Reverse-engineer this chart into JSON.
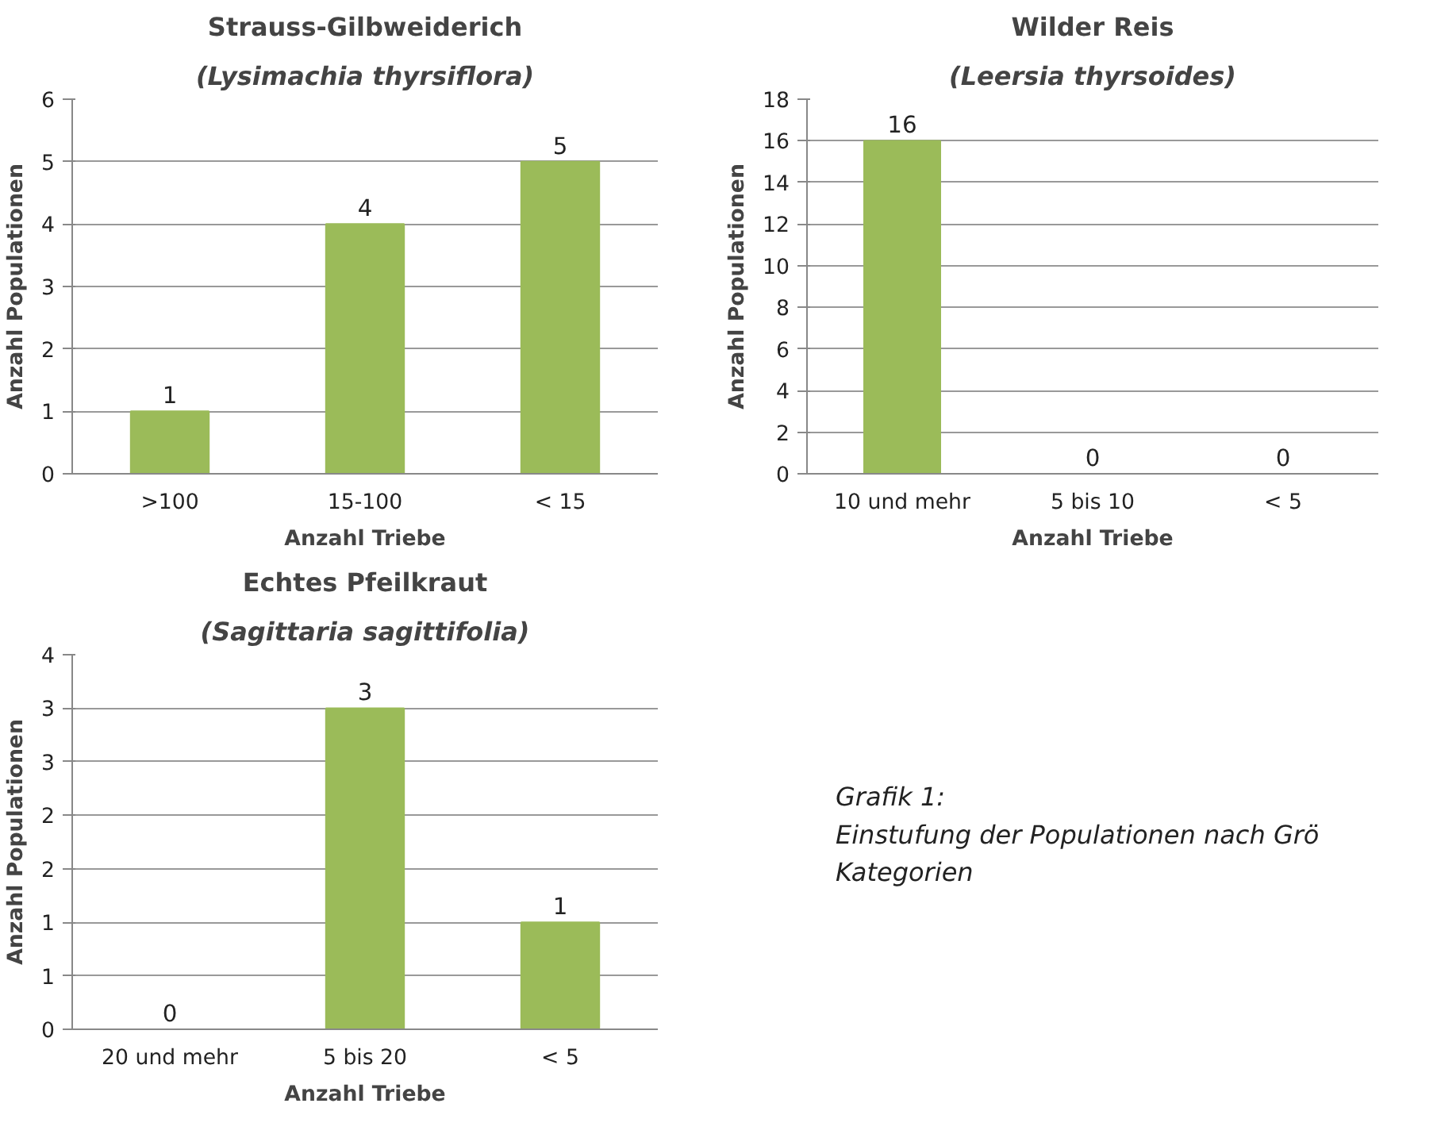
{
  "chart_data": [
    {
      "type": "bar",
      "title": "Strauss-Gilbweiderich",
      "subtitle": "(Lysimachia thyrsiflora)",
      "xlabel": "Anzahl Triebe",
      "ylabel": "Anzahl Populationen",
      "categories": [
        ">100",
        "15-100",
        "< 15"
      ],
      "values": [
        1,
        4,
        5
      ],
      "color": "#9bbb59",
      "ylim": [
        0,
        6
      ],
      "yticks": [
        0,
        1,
        2,
        3,
        4,
        5,
        6
      ],
      "grid": "y",
      "data_labels": true
    },
    {
      "type": "bar",
      "title": "Wilder Reis",
      "subtitle": "(Leersia thyrsoides)",
      "xlabel": "Anzahl Triebe",
      "ylabel": "Anzahl Populationen",
      "categories": [
        "10 und mehr",
        "5 bis 10",
        "< 5"
      ],
      "values": [
        16,
        0,
        0
      ],
      "color": "#9bbb59",
      "ylim": [
        0,
        18
      ],
      "yticks": [
        0,
        2,
        4,
        6,
        8,
        10,
        12,
        14,
        16,
        18
      ],
      "grid": "y",
      "data_labels": true
    },
    {
      "type": "bar",
      "title": "Echtes Pfeilkraut",
      "subtitle": "(Sagittaria sagittifolia)",
      "xlabel": "Anzahl Triebe",
      "ylabel": "Anzahl Populationen",
      "categories": [
        "20 und mehr",
        "5 bis 20",
        "< 5"
      ],
      "values": [
        0,
        3,
        1
      ],
      "color": "#9bbb59",
      "ylim": [
        0,
        3.5
      ],
      "yticks": [
        0,
        {
          "value": 0.5,
          "label": "1"
        },
        1,
        {
          "value": 1.5,
          "label": "2"
        },
        2,
        {
          "value": 2.5,
          "label": "3"
        },
        3,
        {
          "value": 3.5,
          "label": "4"
        }
      ],
      "grid": "y",
      "data_labels": true
    },
    {
      "type": "other",
      "annotations": [
        "Grafik 1:",
        "Einstufung der Populationen nach Grö",
        "Kategorien"
      ]
    }
  ]
}
